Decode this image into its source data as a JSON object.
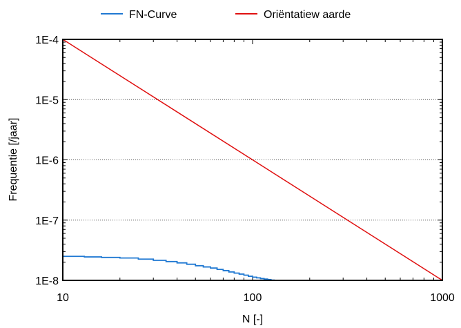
{
  "chart_data": {
    "type": "line",
    "xlabel": "N [-]",
    "ylabel": "Frequentie [/jaar]",
    "x_scale": "log",
    "y_scale": "log",
    "xlim": [
      10,
      1000
    ],
    "ylim": [
      1e-08,
      0.0001
    ],
    "x_ticks": [
      10,
      100,
      1000
    ],
    "x_tick_labels": [
      "10",
      "100",
      "1000"
    ],
    "y_ticks": [
      1e-08,
      1e-07,
      1e-06,
      1e-05,
      0.0001
    ],
    "y_tick_labels": [
      "1E-8",
      "1E-7",
      "1E-6",
      "1E-5",
      "1E-4"
    ],
    "grid": "horizontal dotted",
    "legend": {
      "placement": "top",
      "entries": [
        "FN-Curve",
        "Oriëntatiew aarde"
      ]
    },
    "series": [
      {
        "name": "FN-Curve",
        "color": "#1f78d2",
        "step": true,
        "x": [
          10,
          13,
          16,
          20,
          25,
          30,
          35,
          40,
          45,
          50,
          55,
          60,
          65,
          70,
          75,
          80,
          85,
          90,
          95,
          100,
          105,
          110,
          115,
          120,
          125,
          130
        ],
        "y": [
          2.5e-08,
          2.45e-08,
          2.4e-08,
          2.35e-08,
          2.25e-08,
          2.15e-08,
          2.05e-08,
          1.95e-08,
          1.85e-08,
          1.75e-08,
          1.67e-08,
          1.6e-08,
          1.52e-08,
          1.45e-08,
          1.38e-08,
          1.32e-08,
          1.27e-08,
          1.22e-08,
          1.17e-08,
          1.13e-08,
          1.1e-08,
          1.07e-08,
          1.05e-08,
          1.03e-08,
          1.01e-08,
          1e-08
        ]
      },
      {
        "name": "Oriëntatiew aarde",
        "color": "#e01010",
        "step": false,
        "x": [
          10,
          1000
        ],
        "y": [
          0.0001,
          1e-08
        ]
      }
    ]
  }
}
